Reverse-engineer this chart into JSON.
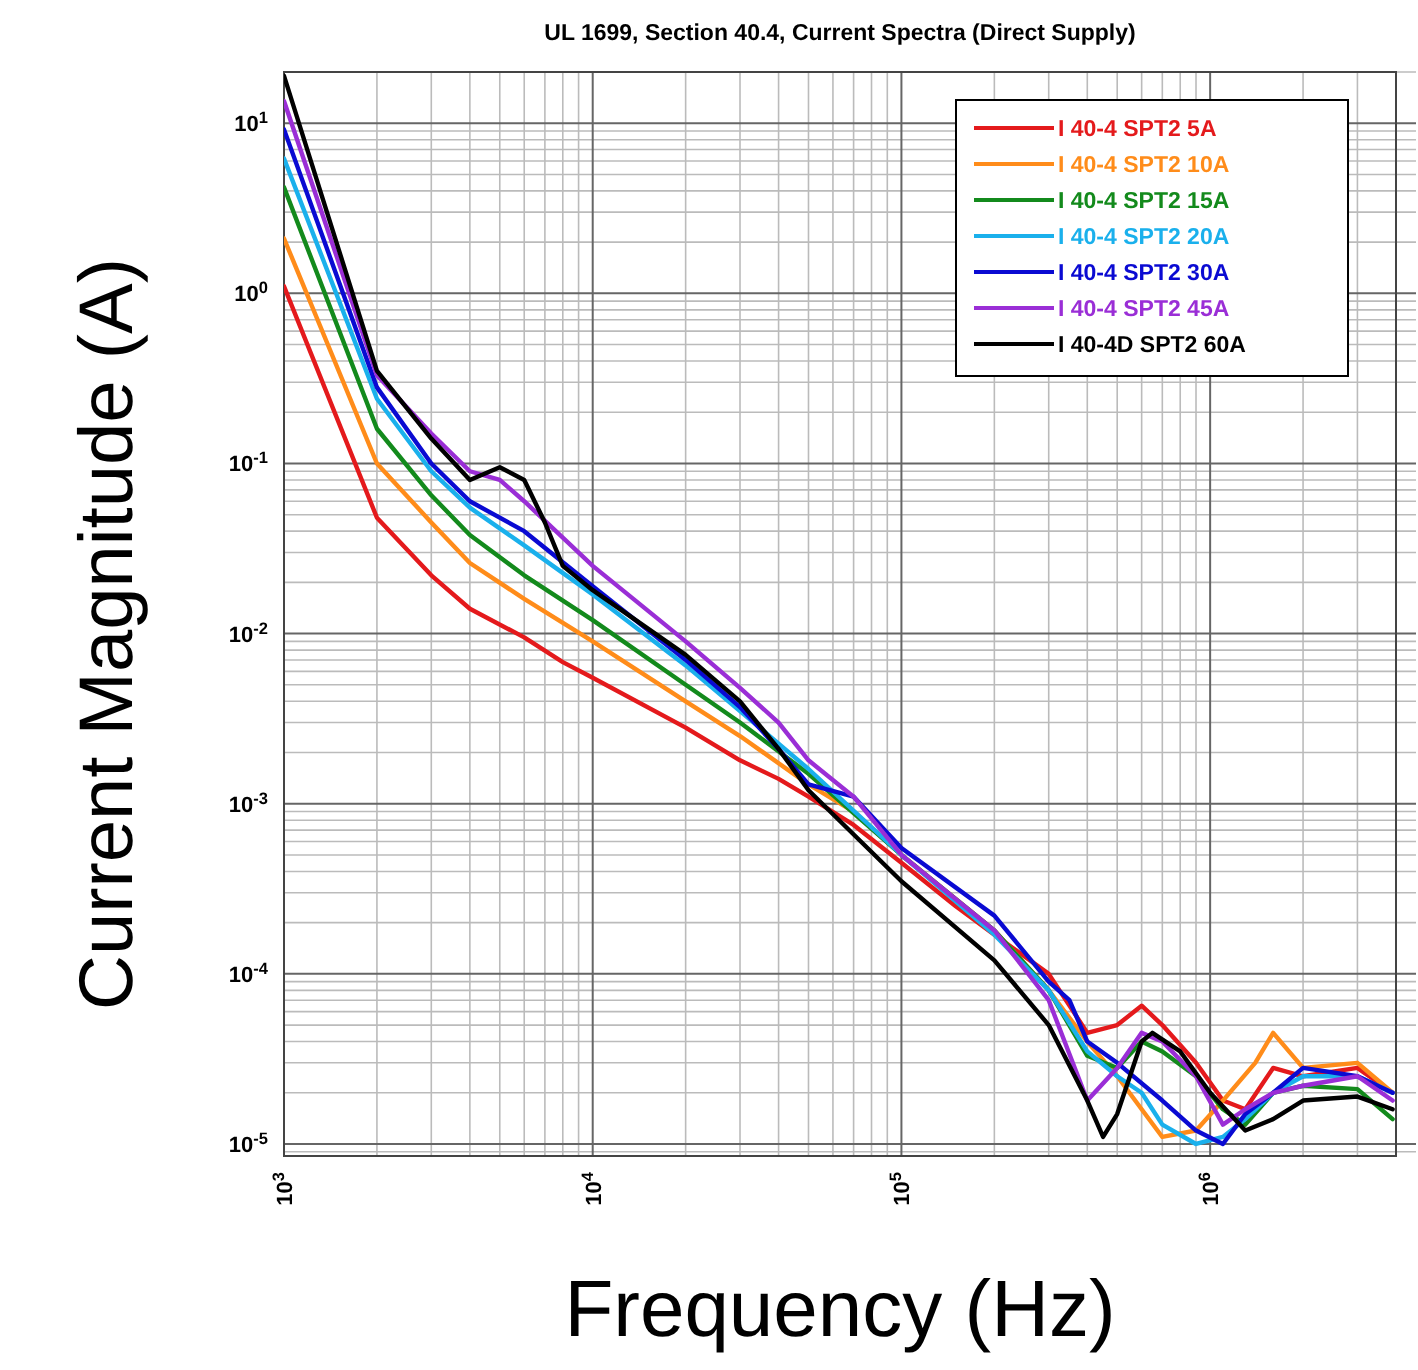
{
  "chart_data": {
    "type": "line",
    "title": "UL 1699, Section 40.4, Current Spectra (Direct Supply)",
    "xlabel": "Frequency (Hz)",
    "ylabel": "Current Magnitude (A)",
    "log": "xy",
    "grid": true,
    "legend": "top right",
    "line_style": "solid",
    "marker": "none",
    "xlim": [
      1000,
      4000000
    ],
    "ylim": [
      8.5e-06,
      20
    ],
    "xticks": [
      {
        "value": 1000,
        "label": "10$^{3}$"
      },
      {
        "value": 10000,
        "label": "10$^{4}$"
      },
      {
        "value": 100000,
        "label": "10$^{5}$"
      },
      {
        "value": 1000000,
        "label": "10$^{6}$"
      }
    ],
    "yticks": [
      {
        "value": 1e-05,
        "label": "10$^{-5}$"
      },
      {
        "value": 0.0001,
        "label": "10$^{-4}$"
      },
      {
        "value": 0.001,
        "label": "10$^{-3}$"
      },
      {
        "value": 0.01,
        "label": "10$^{-2}$"
      },
      {
        "value": 0.1,
        "label": "10$^{-1}$"
      },
      {
        "value": 1,
        "label": "10$^{0}$"
      },
      {
        "value": 10,
        "label": "10$^{1}$"
      }
    ],
    "series": [
      {
        "name": "I 40-4 SPT2 5A",
        "color": "#e41a1c",
        "x": [
          1000,
          2000,
          3000,
          4000,
          6000,
          8000,
          10000,
          20000,
          30000,
          40000,
          50000,
          70000,
          100000,
          150000,
          200000,
          300000,
          400000,
          500000,
          600000,
          700000,
          900000,
          1100000,
          1300000,
          1600000,
          2000000,
          3000000,
          3900000
        ],
        "values": [
          1.1,
          0.048,
          0.022,
          0.014,
          0.0095,
          0.0068,
          0.0055,
          0.0028,
          0.0018,
          0.0014,
          0.0011,
          0.00075,
          0.00045,
          0.00025,
          0.00017,
          0.0001,
          4.5e-05,
          5e-05,
          6.5e-05,
          5e-05,
          3e-05,
          1.8e-05,
          1.6e-05,
          2.8e-05,
          2.5e-05,
          2.8e-05,
          2e-05
        ]
      },
      {
        "name": "I 40-4 SPT2 10A",
        "color": "#ff8c1a",
        "x": [
          1000,
          2000,
          3000,
          4000,
          6000,
          10000,
          20000,
          30000,
          50000,
          70000,
          100000,
          200000,
          300000,
          400000,
          500000,
          600000,
          700000,
          900000,
          1100000,
          1400000,
          1600000,
          2000000,
          3000000,
          3900000
        ],
        "values": [
          2.1,
          0.1,
          0.045,
          0.026,
          0.016,
          0.009,
          0.004,
          0.0025,
          0.0013,
          0.0009,
          0.0005,
          0.00018,
          8e-05,
          4e-05,
          2.5e-05,
          1.6e-05,
          1.1e-05,
          1.2e-05,
          1.8e-05,
          3e-05,
          4.5e-05,
          2.8e-05,
          3e-05,
          2e-05
        ]
      },
      {
        "name": "I 40-4 SPT2 15A",
        "color": "#138a1c",
        "x": [
          1000,
          2000,
          3000,
          4000,
          6000,
          10000,
          20000,
          30000,
          50000,
          100000,
          200000,
          300000,
          400000,
          500000,
          600000,
          700000,
          900000,
          1100000,
          1300000,
          1600000,
          2000000,
          3000000,
          3900000
        ],
        "values": [
          4.2,
          0.16,
          0.065,
          0.038,
          0.022,
          0.012,
          0.005,
          0.003,
          0.0015,
          0.0005,
          0.00018,
          8e-05,
          3.3e-05,
          2.8e-05,
          4e-05,
          3.5e-05,
          2.5e-05,
          1.6e-05,
          1.3e-05,
          2e-05,
          2.2e-05,
          2.1e-05,
          1.4e-05
        ]
      },
      {
        "name": "I 40-4 SPT2 20A",
        "color": "#1ab0ec",
        "x": [
          1000,
          2000,
          3000,
          4000,
          6000,
          10000,
          20000,
          30000,
          50000,
          100000,
          200000,
          300000,
          400000,
          500000,
          600000,
          700000,
          900000,
          1100000,
          1300000,
          1600000,
          2000000,
          3000000,
          3900000
        ],
        "values": [
          6.2,
          0.24,
          0.09,
          0.055,
          0.033,
          0.017,
          0.0065,
          0.0035,
          0.0016,
          0.0005,
          0.00017,
          8e-05,
          3.5e-05,
          2.5e-05,
          2e-05,
          1.3e-05,
          1e-05,
          1.1e-05,
          1.4e-05,
          2e-05,
          2.5e-05,
          2.5e-05,
          2e-05
        ]
      },
      {
        "name": "I 40-4 SPT2 30A",
        "color": "#0a0ad2",
        "x": [
          1000,
          2000,
          3000,
          4000,
          6000,
          10000,
          20000,
          30000,
          40000,
          50000,
          70000,
          100000,
          200000,
          300000,
          350000,
          400000,
          500000,
          700000,
          900000,
          1100000,
          1300000,
          1600000,
          2000000,
          3000000,
          3900000
        ],
        "values": [
          9.2,
          0.28,
          0.1,
          0.06,
          0.04,
          0.019,
          0.007,
          0.0037,
          0.0021,
          0.0013,
          0.0011,
          0.00055,
          0.00022,
          9e-05,
          7e-05,
          4e-05,
          3e-05,
          1.8e-05,
          1.2e-05,
          1e-05,
          1.5e-05,
          2e-05,
          2.8e-05,
          2.5e-05,
          2e-05
        ]
      },
      {
        "name": "I 40-4 SPT2 45A",
        "color": "#9a2ed6",
        "x": [
          1000,
          2000,
          3000,
          4000,
          5000,
          6000,
          10000,
          20000,
          30000,
          40000,
          50000,
          70000,
          100000,
          200000,
          300000,
          400000,
          500000,
          600000,
          700000,
          900000,
          1100000,
          1300000,
          1600000,
          2000000,
          3000000,
          3900000
        ],
        "values": [
          13.5,
          0.33,
          0.15,
          0.09,
          0.08,
          0.06,
          0.025,
          0.009,
          0.0048,
          0.003,
          0.0018,
          0.0011,
          0.0005,
          0.00018,
          7e-05,
          1.8e-05,
          2.8e-05,
          4.5e-05,
          4e-05,
          2.5e-05,
          1.3e-05,
          1.6e-05,
          2e-05,
          2.2e-05,
          2.5e-05,
          1.8e-05
        ]
      },
      {
        "name": "I 40-4D SPT2 60A",
        "color": "#000000",
        "x": [
          1000,
          2000,
          3000,
          4000,
          5000,
          6000,
          7000,
          8000,
          10000,
          20000,
          30000,
          40000,
          50000,
          100000,
          200000,
          300000,
          400000,
          450000,
          500000,
          600000,
          650000,
          800000,
          1000000,
          1300000,
          1600000,
          2000000,
          3000000,
          3900000
        ],
        "values": [
          19,
          0.35,
          0.14,
          0.08,
          0.095,
          0.08,
          0.045,
          0.025,
          0.018,
          0.0075,
          0.004,
          0.0021,
          0.0012,
          0.00035,
          0.00012,
          5e-05,
          1.8e-05,
          1.1e-05,
          1.5e-05,
          4e-05,
          4.5e-05,
          3.5e-05,
          2e-05,
          1.2e-05,
          1.4e-05,
          1.8e-05,
          1.9e-05,
          1.6e-05
        ]
      }
    ]
  }
}
